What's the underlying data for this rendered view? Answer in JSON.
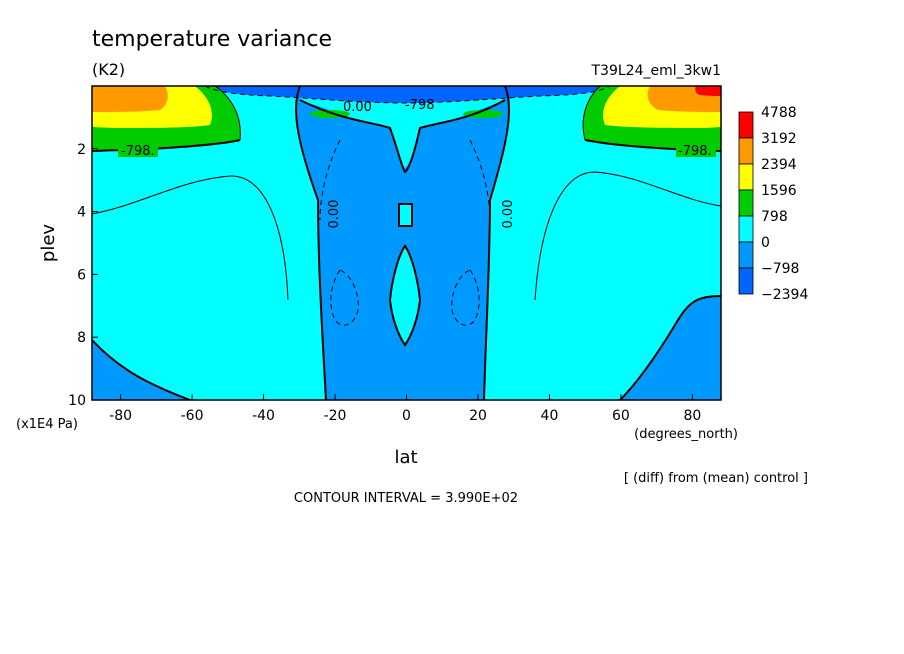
{
  "chart_data": {
    "type": "contour",
    "title": "temperature variance",
    "units": "(K2)",
    "run_label": "T39L24_eml_3kw1",
    "xlabel": "lat",
    "xunits": "(degrees_north)",
    "ylabel": "plev",
    "yunits": "(x1E4 Pa)",
    "x_ticks": [
      -80,
      -60,
      -40,
      -20,
      0,
      20,
      40,
      60,
      80
    ],
    "y_ticks": [
      2,
      4,
      6,
      8,
      10
    ],
    "xlim": [
      -88,
      88
    ],
    "ylim": [
      10,
      0
    ],
    "y_inverted": true,
    "colorbar": {
      "levels": [
        "4788",
        "3192",
        "2394",
        "1596",
        "798",
        "0",
        "-798",
        "-2394"
      ],
      "colors": [
        "#ff0000",
        "#ff9900",
        "#ffff00",
        "#00cc00",
        "#00ffff",
        "#0099ff",
        "#0066ff"
      ]
    },
    "contour_labels": [
      "-798.",
      "0.00",
      "-798",
      "0.00",
      "0.00",
      "-798."
    ],
    "note": "[ (diff) from (mean) control ]",
    "contour_interval": "CONTOUR INTERVAL = 3.990E+02"
  }
}
